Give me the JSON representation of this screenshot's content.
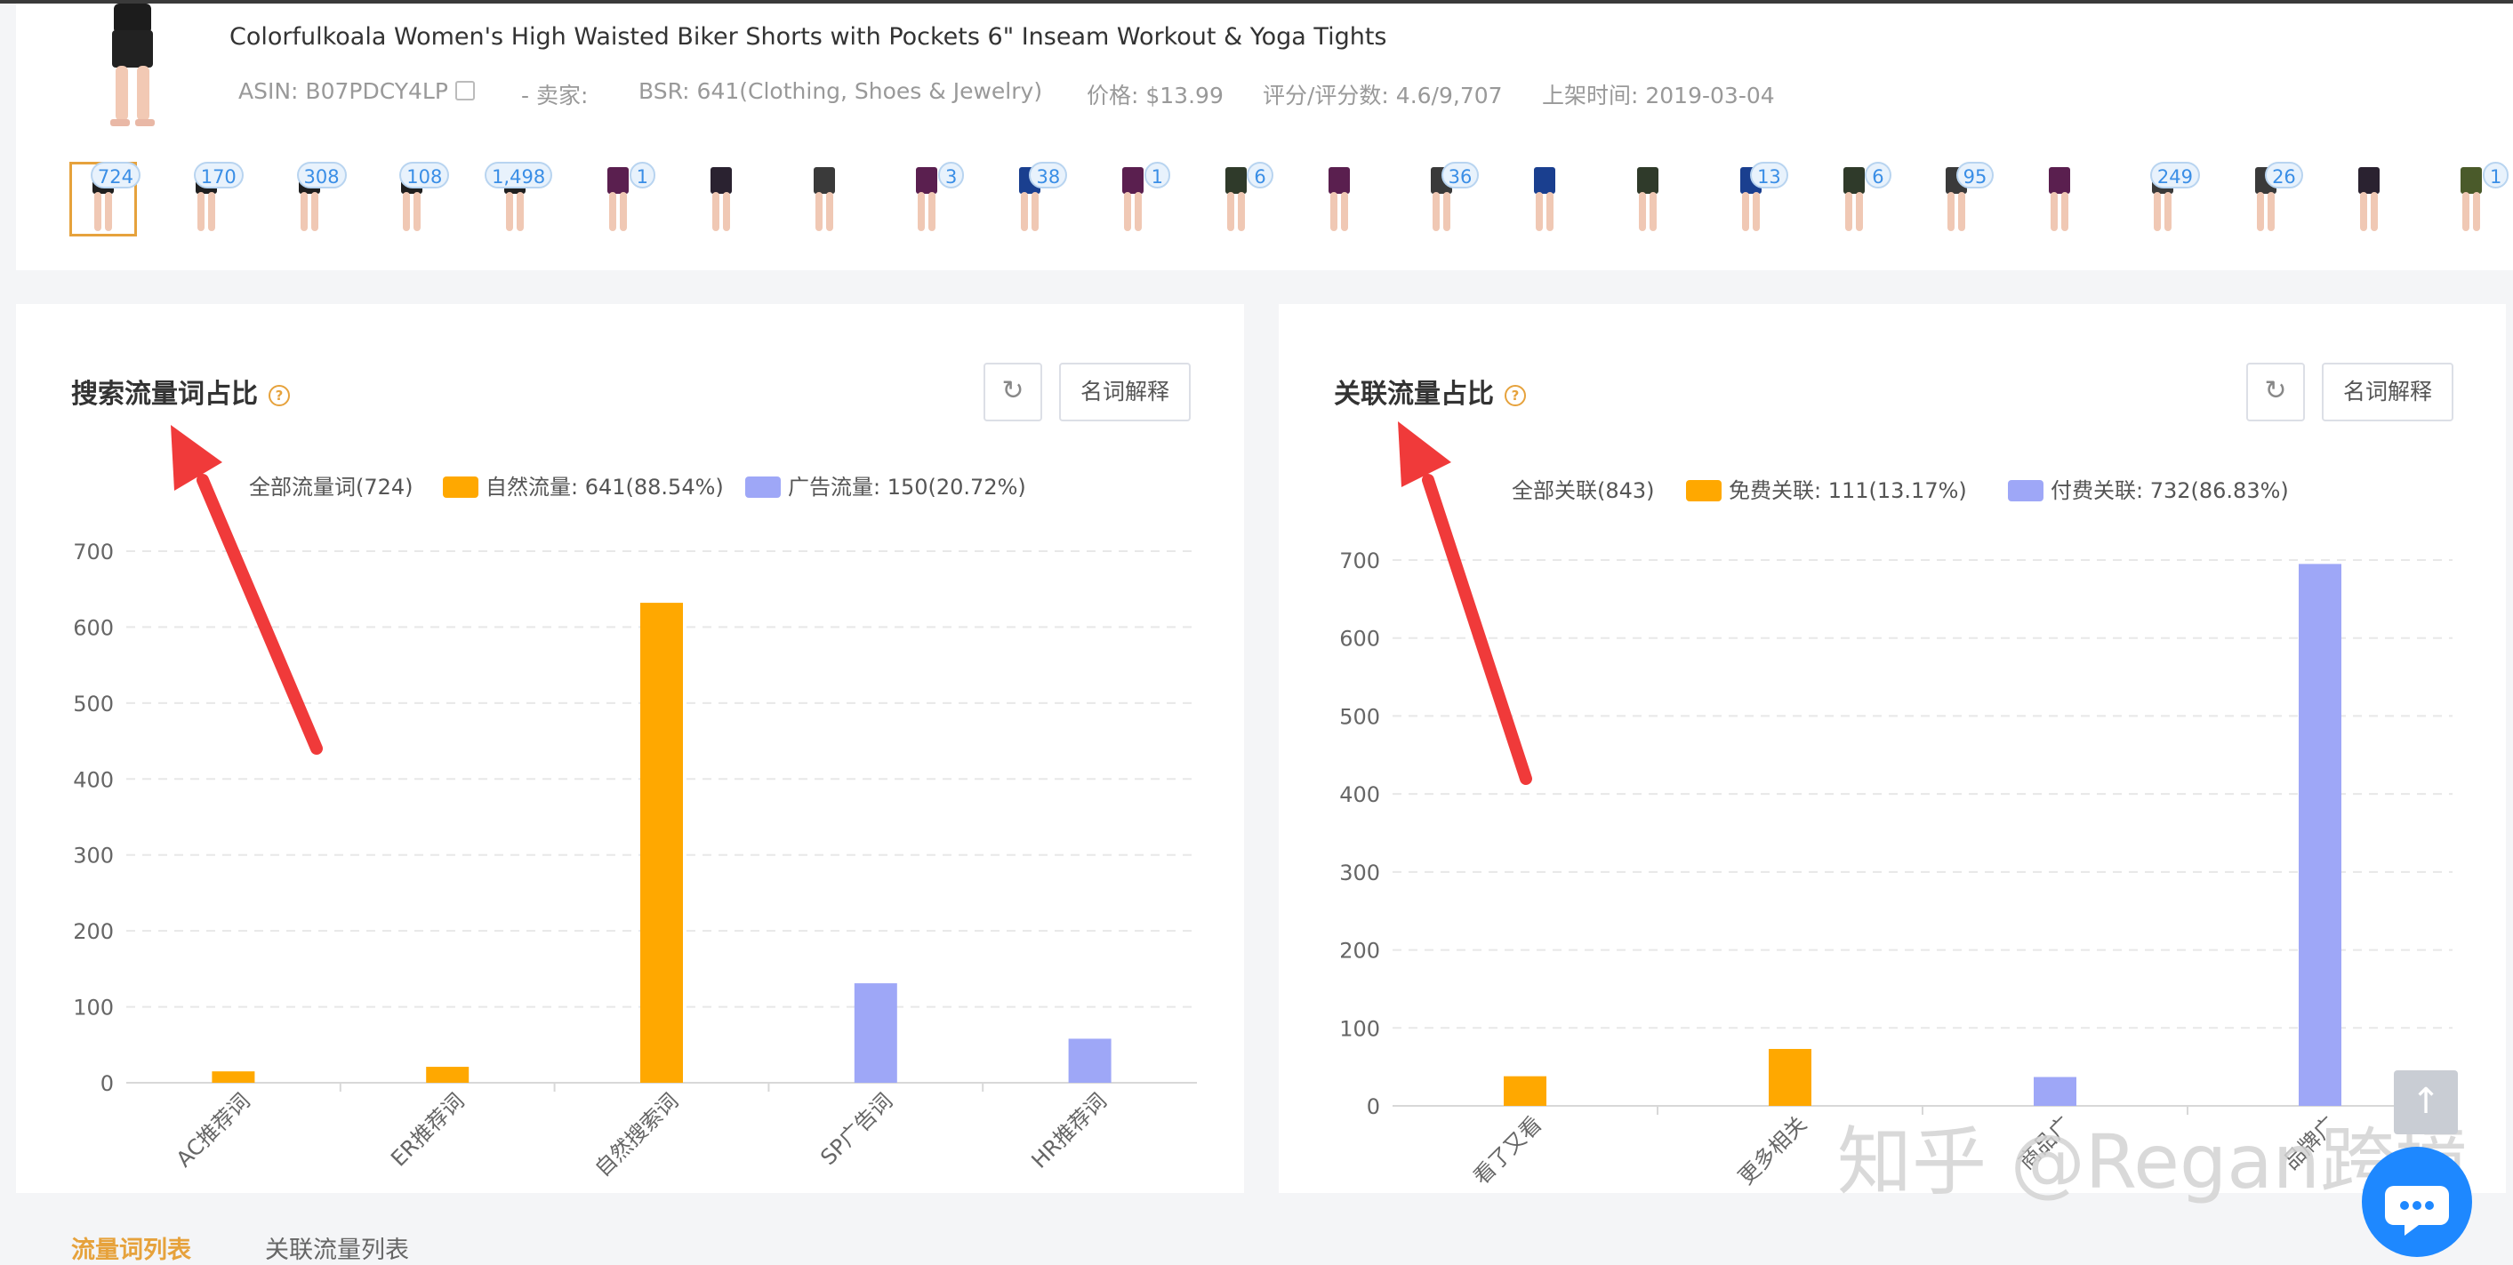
{
  "product": {
    "title": "Colorfulkoala Women's High Waisted Biker Shorts with Pockets 6\" Inseam Workout & Yoga Tights",
    "asin": "ASIN: B07PDCY4LP",
    "seller": "- 卖家:",
    "bsr": "BSR: 641(Clothing, Shoes & Jewelry)",
    "price": "价格: $13.99",
    "rating": "评分/评分数: 4.6/9,707",
    "listed": "上架时间: 2019-03-04"
  },
  "thumbnails": [
    {
      "badge": "724",
      "color": "#1f1f1f",
      "selected": true
    },
    {
      "badge": "170",
      "color": "#1f1f1f"
    },
    {
      "badge": "308",
      "color": "#1f1f1f"
    },
    {
      "badge": "108",
      "color": "#1f1f1f"
    },
    {
      "badge": "1,498",
      "color": "#1f1f1f"
    },
    {
      "badge": "1",
      "color": "#5a1f4f"
    },
    {
      "badge": "",
      "color": "#2a2230"
    },
    {
      "badge": "",
      "color": "#3a3a3a"
    },
    {
      "badge": "3",
      "color": "#5a1f4f"
    },
    {
      "badge": "38",
      "color": "#1a3f8f"
    },
    {
      "badge": "1",
      "color": "#5a1f4f"
    },
    {
      "badge": "6",
      "color": "#2f3a2a"
    },
    {
      "badge": "",
      "color": "#5a1f4f"
    },
    {
      "badge": "36",
      "color": "#3a3a3a"
    },
    {
      "badge": "",
      "color": "#1a3f8f"
    },
    {
      "badge": "",
      "color": "#2f3a2a"
    },
    {
      "badge": "13",
      "color": "#1a3f8f"
    },
    {
      "badge": "6",
      "color": "#2f3a2a"
    },
    {
      "badge": "95",
      "color": "#3a3a3a"
    },
    {
      "badge": "",
      "color": "#5a1f4f"
    },
    {
      "badge": "249",
      "color": "#3a3a3a"
    },
    {
      "badge": "26",
      "color": "#3a3a3a"
    },
    {
      "badge": "",
      "color": "#2a2230"
    },
    {
      "badge": "1",
      "color": "#4a5a2a"
    }
  ],
  "left_panel": {
    "title": "搜索流量词占比",
    "glossary_label": "名词解释",
    "legend": {
      "all": "全部流量词(724)",
      "organic": "自然流量: 641(88.54%)",
      "ads": "广告流量: 150(20.72%)"
    }
  },
  "right_panel": {
    "title": "关联流量占比",
    "glossary_label": "名词解释",
    "legend": {
      "all": "全部关联(843)",
      "free": "免费关联: 111(13.17%)",
      "paid": "付费关联: 732(86.83%)"
    }
  },
  "chart_data": [
    {
      "type": "bar",
      "title": "搜索流量词占比",
      "categories": [
        "AC推荐词",
        "ER推荐词",
        "自然搜索词",
        "SP广告词",
        "HR推荐词"
      ],
      "values": [
        15,
        21,
        632,
        131,
        58
      ],
      "bar_colors": [
        "#ffa800",
        "#ffa800",
        "#ffa800",
        "#9ea7f7",
        "#9ea7f7"
      ],
      "yticks": [
        0,
        100,
        200,
        300,
        400,
        500,
        600,
        700
      ],
      "ylim": [
        0,
        700
      ],
      "grid": true,
      "legend_position": "top"
    },
    {
      "type": "bar",
      "title": "关联流量占比",
      "categories": [
        "看了又看",
        "更多相关",
        "商品广告",
        "品牌广告"
      ],
      "category_labels_visible": [
        "看了又看",
        "更多相关",
        "商品广",
        "品牌广"
      ],
      "values": [
        38,
        73,
        37,
        695
      ],
      "bar_colors": [
        "#ffa800",
        "#ffa800",
        "#9ea7f7",
        "#9ea7f7"
      ],
      "yticks": [
        0,
        100,
        200,
        300,
        400,
        500,
        600,
        700
      ],
      "ylim": [
        0,
        700
      ],
      "grid": true,
      "legend_position": "top"
    }
  ],
  "tabs": [
    {
      "label": "流量词列表",
      "active": true
    },
    {
      "label": "关联流量列表",
      "active": false
    }
  ],
  "watermark": "知乎 @Regan跨境",
  "colors": {
    "orange": "#ffa800",
    "purple": "#9ea7f7",
    "accent": "#e6a23c",
    "arrow": "#f03a3a",
    "badge_text": "#3a8ee6"
  }
}
